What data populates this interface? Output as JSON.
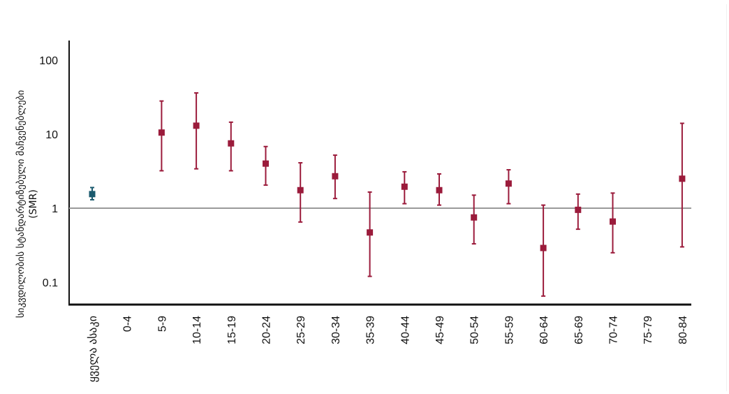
{
  "chart_data": {
    "type": "scatter",
    "title": "",
    "ylabel_line1": "სიკვდილობის სტანდარტიზებული მაჩვენებლები",
    "ylabel_line2": "(SMR)",
    "xlabel": "",
    "y_scale": "log",
    "ylim": [
      0.05,
      150
    ],
    "y_ticks": [
      0.1,
      1,
      10,
      100
    ],
    "y_tick_labels": [
      "0.1",
      "1",
      "10",
      "100"
    ],
    "reference_line": 1,
    "grid": false,
    "categories": [
      "ყველა ასაკი",
      "0-4",
      "5-9",
      "10-14",
      "15-19",
      "20-24",
      "25-29",
      "30-34",
      "35-39",
      "40-44",
      "45-49",
      "50-54",
      "55-59",
      "60-64",
      "65-69",
      "70-74",
      "75-79",
      "80-84"
    ],
    "series": [
      {
        "color": "#1a5a6e",
        "points": [
          {
            "category": "ყველა ასაკი",
            "value": 1.55,
            "lower": 1.3,
            "upper": 1.9
          }
        ]
      },
      {
        "color": "#9b1b3b",
        "points": [
          {
            "category": "5-9",
            "value": 10.5,
            "lower": 3.2,
            "upper": 28
          },
          {
            "category": "10-14",
            "value": 13,
            "lower": 3.4,
            "upper": 36
          },
          {
            "category": "15-19",
            "value": 7.5,
            "lower": 3.2,
            "upper": 14.5
          },
          {
            "category": "20-24",
            "value": 4,
            "lower": 2.05,
            "upper": 6.8
          },
          {
            "category": "25-29",
            "value": 1.75,
            "lower": 0.65,
            "upper": 4.1
          },
          {
            "category": "30-34",
            "value": 2.7,
            "lower": 1.35,
            "upper": 5.2
          },
          {
            "category": "35-39",
            "value": 0.47,
            "lower": 0.12,
            "upper": 1.65
          },
          {
            "category": "40-44",
            "value": 1.95,
            "lower": 1.15,
            "upper": 3.1
          },
          {
            "category": "45-49",
            "value": 1.75,
            "lower": 1.1,
            "upper": 2.9
          },
          {
            "category": "50-54",
            "value": 0.75,
            "lower": 0.33,
            "upper": 1.5
          },
          {
            "category": "55-59",
            "value": 2.15,
            "lower": 1.15,
            "upper": 3.3
          },
          {
            "category": "60-64",
            "value": 0.29,
            "lower": 0.065,
            "upper": 1.1
          },
          {
            "category": "65-69",
            "value": 0.95,
            "lower": 0.52,
            "upper": 1.55
          },
          {
            "category": "70-74",
            "value": 0.66,
            "lower": 0.25,
            "upper": 1.6
          },
          {
            "category": "80-84",
            "value": 2.5,
            "lower": 0.3,
            "upper": 14
          }
        ]
      }
    ]
  }
}
